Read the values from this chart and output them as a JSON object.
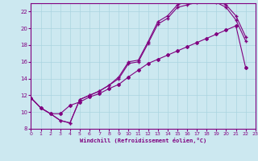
{
  "xlabel": "Windchill (Refroidissement éolien,°C)",
  "bg_color": "#cce8f0",
  "line_color": "#800080",
  "xlim": [
    0,
    23
  ],
  "ylim": [
    8,
    23
  ],
  "xticks": [
    0,
    1,
    2,
    3,
    4,
    5,
    6,
    7,
    8,
    9,
    10,
    11,
    12,
    13,
    14,
    15,
    16,
    17,
    18,
    19,
    20,
    21,
    22,
    23
  ],
  "yticks": [
    8,
    10,
    12,
    14,
    16,
    18,
    20,
    22
  ],
  "grid_color": "#aad4e0",
  "s1_x": [
    0,
    1,
    2,
    3,
    4,
    5,
    6,
    7,
    8,
    9,
    10,
    11,
    12,
    13,
    14,
    15,
    16,
    17,
    18,
    19,
    20,
    21,
    22
  ],
  "s1_y": [
    11.7,
    10.5,
    9.8,
    9.0,
    8.7,
    11.5,
    12.0,
    12.5,
    13.2,
    14.0,
    15.8,
    16.0,
    18.2,
    20.5,
    21.2,
    22.5,
    22.8,
    23.1,
    23.2,
    23.1,
    22.5,
    21.0,
    18.5
  ],
  "s2_x": [
    0,
    1,
    2,
    3,
    4,
    5,
    6,
    7,
    8,
    9,
    10,
    11,
    12,
    13,
    14,
    15,
    16,
    17,
    18,
    19,
    20,
    21,
    22
  ],
  "s2_y": [
    11.7,
    10.5,
    9.8,
    9.0,
    8.7,
    11.5,
    12.0,
    12.5,
    13.2,
    14.2,
    16.0,
    16.2,
    18.4,
    20.8,
    21.5,
    22.8,
    23.2,
    23.4,
    23.5,
    23.3,
    22.8,
    21.5,
    19.0
  ],
  "s3_x": [
    0,
    1,
    2,
    3,
    4,
    5,
    6,
    7,
    8,
    9,
    10,
    11,
    12,
    13,
    14,
    15,
    16,
    17,
    18,
    19,
    20,
    21,
    22
  ],
  "s3_y": [
    11.7,
    10.5,
    9.8,
    9.8,
    10.8,
    11.2,
    11.8,
    12.2,
    12.8,
    13.3,
    14.2,
    15.0,
    15.8,
    16.3,
    16.8,
    17.3,
    17.8,
    18.3,
    18.8,
    19.3,
    19.8,
    20.3,
    15.3
  ]
}
